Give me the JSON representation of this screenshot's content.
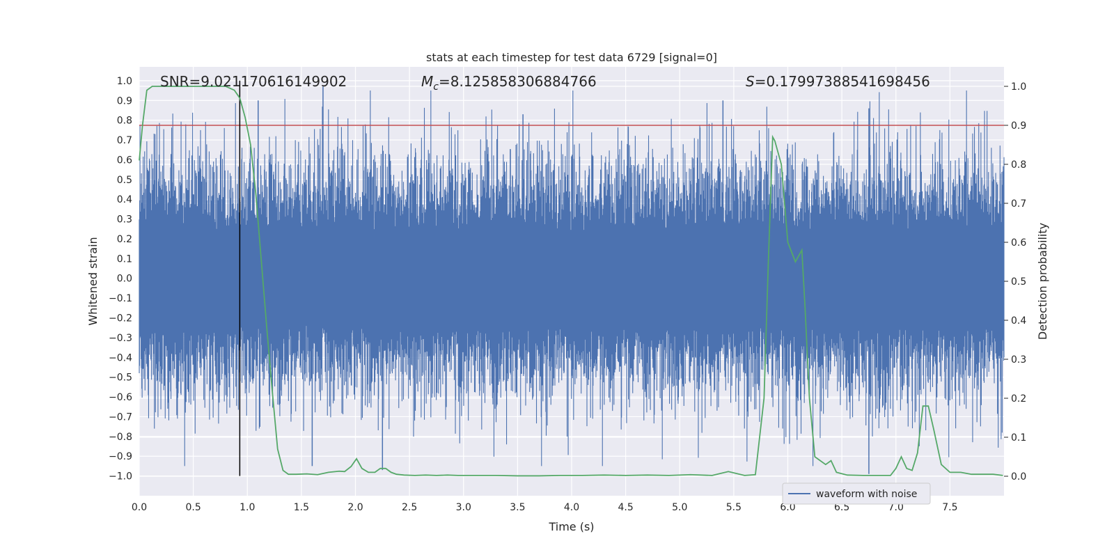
{
  "chart_data": {
    "type": "line",
    "title": "stats at each timestep for test data 6729 [signal=0]",
    "xlabel": "Time (s)",
    "ylabel_left": "Whitened strain",
    "ylabel_right": "Detection probability",
    "xlim": [
      0.0,
      8.0
    ],
    "ylim_left": [
      -1.1,
      1.07
    ],
    "ylim_right": [
      -0.05,
      1.05
    ],
    "x_ticks": [
      "0.0",
      "0.5",
      "1.0",
      "1.5",
      "2.0",
      "2.5",
      "3.0",
      "3.5",
      "4.0",
      "4.5",
      "5.0",
      "5.5",
      "6.0",
      "6.5",
      "7.0",
      "7.5"
    ],
    "x_tick_values": [
      0.0,
      0.5,
      1.0,
      1.5,
      2.0,
      2.5,
      3.0,
      3.5,
      4.0,
      4.5,
      5.0,
      5.5,
      6.0,
      6.5,
      7.0,
      7.5
    ],
    "y_left_ticks": [
      "1.0",
      "0.9",
      "0.8",
      "0.7",
      "0.6",
      "0.5",
      "0.4",
      "0.3",
      "0.2",
      "0.1",
      "0.0",
      "−0.1",
      "−0.2",
      "−0.3",
      "−0.4",
      "−0.5",
      "−0.6",
      "−0.7",
      "−0.8",
      "−0.9",
      "−1.0"
    ],
    "y_left_tick_values": [
      1.0,
      0.9,
      0.8,
      0.7,
      0.6,
      0.5,
      0.4,
      0.3,
      0.2,
      0.1,
      0.0,
      -0.1,
      -0.2,
      -0.3,
      -0.4,
      -0.5,
      -0.6,
      -0.7,
      -0.8,
      -0.9,
      -1.0
    ],
    "y_right_ticks": [
      "1.0",
      "0.9",
      "0.8",
      "0.7",
      "0.6",
      "0.5",
      "0.4",
      "0.3",
      "0.2",
      "0.1",
      "0.0"
    ],
    "y_right_tick_values": [
      1.0,
      0.9,
      0.8,
      0.7,
      0.6,
      0.5,
      0.4,
      0.3,
      0.2,
      0.1,
      0.0
    ],
    "annotations": {
      "snr": "SNR=9.021170616149902",
      "mc_symbol": "M",
      "mc_sub": "c",
      "mc_value": "=8.125858306884766",
      "s_symbol": "S",
      "s_value": "=0.17997388541698456"
    },
    "threshold_line": {
      "value_right_axis": 0.9,
      "color": "#c44e52"
    },
    "vertical_marker": {
      "x": 0.93,
      "y_range": [
        -1.0,
        1.0
      ],
      "color": "#000000"
    },
    "legend": {
      "label": "waveform with noise",
      "placement": "lower-right"
    },
    "series": [
      {
        "name": "waveform with noise",
        "axis": "left",
        "color": "#4c72b0",
        "description_values": "whitened strain noise, core amplitude about ±0.3 to ±0.4, occasional peaks to ±0.9",
        "notable_peaks": [
          {
            "x": 1.1,
            "y": 0.9
          },
          {
            "x": 1.7,
            "y": 0.97
          },
          {
            "x": 3.55,
            "y": 0.83
          },
          {
            "x": 5.4,
            "y": 0.9
          },
          {
            "x": 6.75,
            "y": 0.86
          },
          {
            "x": 1.6,
            "y": -0.95
          },
          {
            "x": 2.25,
            "y": -0.97
          },
          {
            "x": 6.75,
            "y": -0.99
          }
        ]
      },
      {
        "name": "detection probability",
        "axis": "right",
        "color": "#55a868",
        "x": [
          0.0,
          0.03,
          0.07,
          0.12,
          0.2,
          0.3,
          0.4,
          0.5,
          0.6,
          0.7,
          0.8,
          0.88,
          0.93,
          0.98,
          1.03,
          1.08,
          1.13,
          1.18,
          1.23,
          1.28,
          1.33,
          1.38,
          1.45,
          1.55,
          1.65,
          1.75,
          1.85,
          1.9,
          1.96,
          2.01,
          2.06,
          2.12,
          2.18,
          2.23,
          2.28,
          2.33,
          2.38,
          2.45,
          2.55,
          2.65,
          2.75,
          2.85,
          2.95,
          3.1,
          3.3,
          3.5,
          3.7,
          3.9,
          4.1,
          4.3,
          4.5,
          4.7,
          4.9,
          5.1,
          5.3,
          5.45,
          5.6,
          5.7,
          5.78,
          5.82,
          5.86,
          5.88,
          5.94,
          6.0,
          6.07,
          6.13,
          6.16,
          6.2,
          6.25,
          6.3,
          6.35,
          6.4,
          6.45,
          6.55,
          6.7,
          6.85,
          6.95,
          7.0,
          7.05,
          7.1,
          7.15,
          7.2,
          7.25,
          7.3,
          7.35,
          7.42,
          7.5,
          7.6,
          7.7,
          7.8,
          7.9,
          7.99
        ],
        "values": [
          0.81,
          0.9,
          0.99,
          1.0,
          1.0,
          1.0,
          1.0,
          1.0,
          1.0,
          1.0,
          1.0,
          0.99,
          0.97,
          0.92,
          0.85,
          0.72,
          0.55,
          0.38,
          0.22,
          0.07,
          0.015,
          0.005,
          0.005,
          0.006,
          0.004,
          0.01,
          0.013,
          0.012,
          0.025,
          0.045,
          0.02,
          0.01,
          0.01,
          0.02,
          0.02,
          0.01,
          0.005,
          0.003,
          0.002,
          0.003,
          0.002,
          0.003,
          0.002,
          0.002,
          0.002,
          0.001,
          0.001,
          0.002,
          0.002,
          0.003,
          0.002,
          0.003,
          0.002,
          0.004,
          0.002,
          0.012,
          0.002,
          0.004,
          0.2,
          0.55,
          0.87,
          0.86,
          0.8,
          0.6,
          0.55,
          0.58,
          0.43,
          0.2,
          0.05,
          0.04,
          0.03,
          0.04,
          0.01,
          0.003,
          0.002,
          0.002,
          0.002,
          0.02,
          0.05,
          0.02,
          0.015,
          0.06,
          0.18,
          0.18,
          0.12,
          0.03,
          0.01,
          0.01,
          0.005,
          0.005,
          0.005,
          0.002
        ]
      }
    ]
  }
}
